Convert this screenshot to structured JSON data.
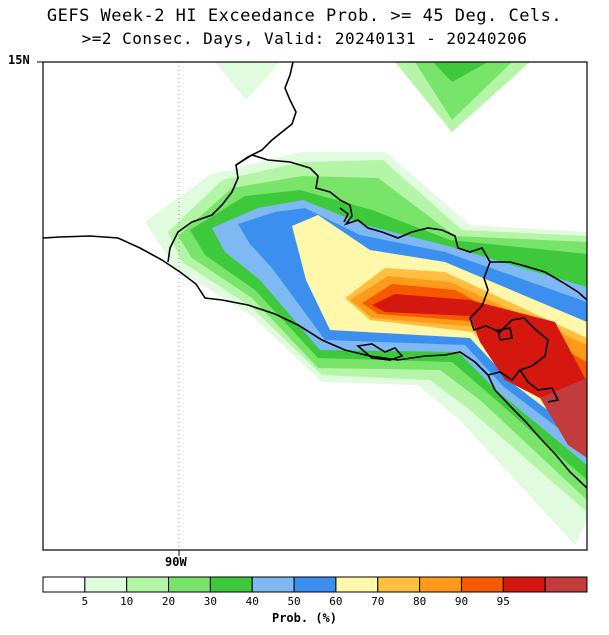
{
  "title_line1": "GEFS Week-2 HI Exceedance Prob. >= 45 Deg. Cels.",
  "title_line2": ">=2 Consec. Days, Valid: 20240131 - 20240206",
  "axis": {
    "lat_label": "15N",
    "lon_label": "90W"
  },
  "legend": {
    "title": "Prob. (%)",
    "ticks": [
      "5",
      "10",
      "20",
      "30",
      "40",
      "50",
      "60",
      "70",
      "80",
      "90",
      "95"
    ],
    "colors": [
      "#ffffff",
      "#e0fbdd",
      "#b4f5a8",
      "#78e46a",
      "#3ec93c",
      "#7fb9f4",
      "#3a8fef",
      "#fff7aa",
      "#ffc042",
      "#ff9a1a",
      "#f55a00",
      "#d5180f",
      "#c33c3c"
    ]
  }
}
